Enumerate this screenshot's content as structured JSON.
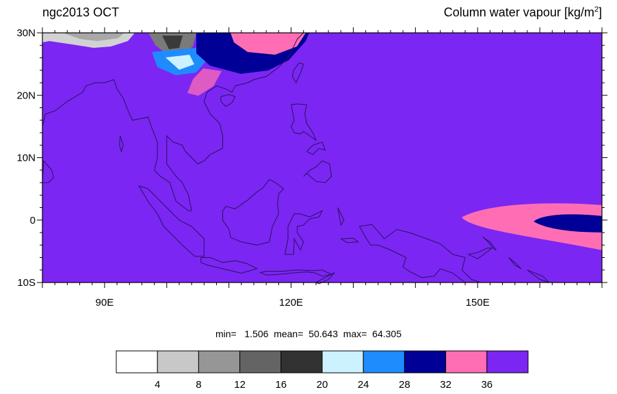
{
  "title_left": "ngc2013 OCT",
  "title_right": {
    "text": "Column water vapour [kg/m",
    "sup": "2",
    "close": "]"
  },
  "map": {
    "lat_labels": [
      {
        "lat": 30,
        "label": "30N"
      },
      {
        "lat": 20,
        "label": "20N"
      },
      {
        "lat": 10,
        "label": "10N"
      },
      {
        "lat": 0,
        "label": "0"
      },
      {
        "lat": -10,
        "label": "10S"
      }
    ],
    "lon_labels": [
      {
        "lon": 90,
        "label": "90E"
      },
      {
        "lon": 120,
        "label": "120E"
      },
      {
        "lon": 150,
        "label": "150E"
      }
    ],
    "lon_range": [
      80,
      170
    ],
    "lat_range": [
      -10,
      30
    ],
    "background_color": "#7B26F2",
    "coastline_color": "#2a1060"
  },
  "stats": {
    "text": "min=   1.506  mean=  50.643  max=  64.305"
  },
  "colorbar": {
    "colors": [
      "#FFFFFF",
      "#C8C8C8",
      "#969696",
      "#646464",
      "#323232",
      "#CCF2FF",
      "#1E8CFF",
      "#000096",
      "#FF6EB4",
      "#7B26F2"
    ],
    "labels": [
      "4",
      "8",
      "12",
      "16",
      "20",
      "24",
      "28",
      "32",
      "36"
    ]
  }
}
